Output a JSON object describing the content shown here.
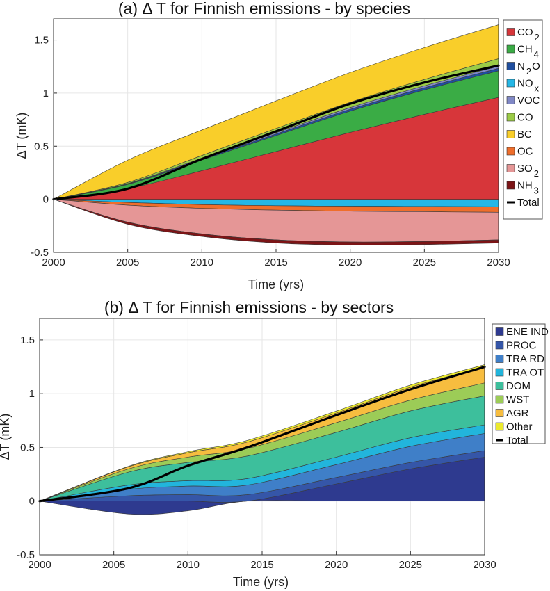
{
  "chart_data": [
    {
      "type": "area",
      "title": "(a) Δ T for Finnish emissions - by species",
      "xlabel": "Time (yrs)",
      "ylabel": "ΔT (mK)",
      "xlim": [
        2000,
        2030
      ],
      "ylim": [
        -0.5,
        1.7
      ],
      "xticks": [
        "2000",
        "2005",
        "2010",
        "2015",
        "2020",
        "2025",
        "2030"
      ],
      "yticks": [
        "-0.5",
        "0",
        "0.5",
        "1",
        "1.5"
      ],
      "grid": true,
      "legend_position": "right",
      "x": [
        2000,
        2005,
        2010,
        2015,
        2020,
        2025,
        2030
      ],
      "series": [
        {
          "name": "CO2",
          "label": "CO",
          "sub": "2",
          "color": "#d7363a",
          "values": [
            0,
            0.1,
            0.27,
            0.45,
            0.63,
            0.8,
            0.96
          ]
        },
        {
          "name": "CH4",
          "label": "CH",
          "sub": "4",
          "color": "#3aac45",
          "values": [
            0,
            0.04,
            0.1,
            0.15,
            0.2,
            0.23,
            0.25
          ]
        },
        {
          "name": "N2O",
          "label": "N",
          "sub": "2",
          "tail": "O",
          "color": "#1f4e9f",
          "values": [
            0,
            0.005,
            0.01,
            0.015,
            0.018,
            0.021,
            0.024
          ]
        },
        {
          "name": "NOx",
          "label": "NO",
          "sub": "x",
          "color": "#25b7e6",
          "values": [
            0,
            -0.03,
            -0.05,
            -0.06,
            -0.065,
            -0.067,
            -0.07
          ]
        },
        {
          "name": "VOC",
          "label": "VOC",
          "color": "#8088c6",
          "values": [
            0,
            0.004,
            0.008,
            0.012,
            0.016,
            0.018,
            0.02
          ]
        },
        {
          "name": "CO",
          "label": "CO",
          "color": "#9ccc47",
          "values": [
            0,
            0.01,
            0.025,
            0.04,
            0.05,
            0.06,
            0.07
          ]
        },
        {
          "name": "BC",
          "label": "BC",
          "color": "#f9ce2a",
          "values": [
            0,
            0.21,
            0.24,
            0.26,
            0.28,
            0.3,
            0.32
          ]
        },
        {
          "name": "OC",
          "label": "OC",
          "color": "#ef6e2b",
          "values": [
            0,
            -0.025,
            -0.035,
            -0.042,
            -0.047,
            -0.05,
            -0.052
          ]
        },
        {
          "name": "SO2",
          "label": "SO",
          "sub": "2",
          "color": "#e59696",
          "values": [
            0,
            -0.16,
            -0.24,
            -0.28,
            -0.29,
            -0.28,
            -0.26
          ]
        },
        {
          "name": "NH3",
          "label": "NH",
          "sub": "3",
          "color": "#7c1416",
          "values": [
            0,
            -0.02,
            -0.025,
            -0.03,
            -0.03,
            -0.03,
            -0.03
          ]
        }
      ],
      "total": {
        "name": "Total",
        "label": "Total",
        "color": "#000000",
        "values": [
          0,
          0.1,
          0.38,
          0.64,
          0.9,
          1.1,
          1.26
        ]
      }
    },
    {
      "type": "area",
      "title": "(b) Δ T for Finnish emissions - by sectors",
      "xlabel": "Time (yrs)",
      "ylabel": "ΔT (mK)",
      "xlim": [
        2000,
        2030
      ],
      "ylim": [
        -0.5,
        1.7
      ],
      "xticks": [
        "2000",
        "2005",
        "2010",
        "2015",
        "2020",
        "2025",
        "2030"
      ],
      "yticks": [
        "-0.5",
        "0",
        "0.5",
        "1",
        "1.5"
      ],
      "grid": true,
      "legend_position": "top-right",
      "x": [
        2000,
        2006,
        2010,
        2014,
        2020,
        2025,
        2030
      ],
      "series": [
        {
          "name": "ENE IND",
          "label": "ENE IND",
          "color": "#2e3a8f",
          "values": [
            0,
            -0.12,
            -0.09,
            0.0,
            0.16,
            0.3,
            0.41
          ]
        },
        {
          "name": "PROC",
          "label": "PROC",
          "color": "#3556a8",
          "values": [
            0,
            0.05,
            0.06,
            0.06,
            0.06,
            0.06,
            0.06
          ]
        },
        {
          "name": "TRA RD",
          "label": "TRA RD",
          "color": "#3f7fc8",
          "values": [
            0,
            0.06,
            0.08,
            0.09,
            0.12,
            0.15,
            0.16
          ]
        },
        {
          "name": "TRA OT",
          "label": "TRA OT",
          "color": "#22b5dc",
          "values": [
            0,
            0.04,
            0.05,
            0.06,
            0.07,
            0.08,
            0.08
          ]
        },
        {
          "name": "DOM",
          "label": "DOM",
          "color": "#3dbf9c",
          "values": [
            0,
            0.12,
            0.17,
            0.21,
            0.23,
            0.25,
            0.27
          ]
        },
        {
          "name": "WST",
          "label": "WST",
          "color": "#9ccc57",
          "values": [
            0,
            0.03,
            0.05,
            0.07,
            0.09,
            0.1,
            0.12
          ]
        },
        {
          "name": "AGR",
          "label": "AGR",
          "color": "#f7bd3f",
          "values": [
            0,
            0.02,
            0.04,
            0.06,
            0.09,
            0.12,
            0.15
          ]
        },
        {
          "name": "Other",
          "label": "Other",
          "color": "#ecea2e",
          "values": [
            0,
            0.005,
            0.01,
            0.015,
            0.018,
            0.02,
            0.02
          ]
        }
      ],
      "total": {
        "name": "Total",
        "label": "Total",
        "color": "#000000",
        "values": [
          0,
          0.12,
          0.33,
          0.5,
          0.8,
          1.04,
          1.25
        ]
      }
    }
  ]
}
